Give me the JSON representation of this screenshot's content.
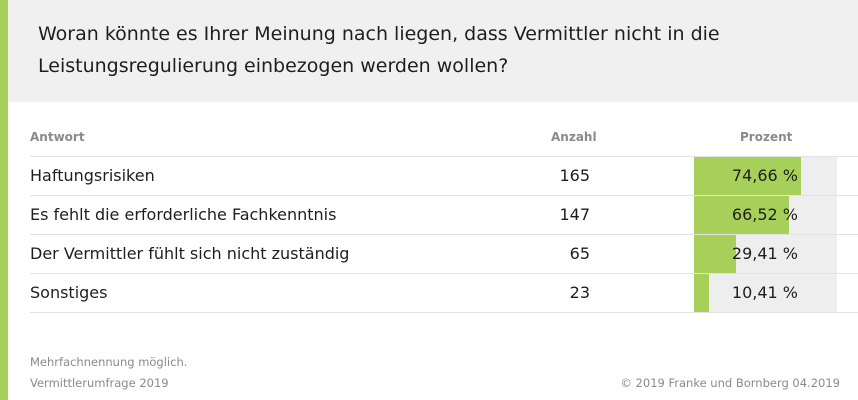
{
  "colors": {
    "accent": "#a7d05a",
    "bar": "#a7d05a",
    "track": "#eeeeee"
  },
  "title": "Woran könnte es Ihrer Meinung nach liegen, dass Vermittler nicht in die Leistungsregulierung einbezogen werden wollen?",
  "columns": {
    "answer": "Antwort",
    "count": "Anzahl",
    "percent": "Prozent"
  },
  "chart_data": {
    "type": "table",
    "title": "Woran könnte es Ihrer Meinung nach liegen, dass Vermittler nicht in die Leistungsregulierung einbezogen werden wollen?",
    "columns": [
      "Antwort",
      "Anzahl",
      "Prozent"
    ],
    "rows": [
      {
        "label": "Haftungsrisiken",
        "count": "165",
        "percent": 74.66,
        "percent_label": "74,66 %"
      },
      {
        "label": "Es fehlt die erforderliche Fachkenntnis",
        "count": "147",
        "percent": 66.52,
        "percent_label": "66,52 %"
      },
      {
        "label": "Der Vermittler fühlt sich nicht zuständig",
        "count": "65",
        "percent": 29.41,
        "percent_label": "29,41 %"
      },
      {
        "label": "Sonstiges",
        "count": "23",
        "percent": 10.41,
        "percent_label": "10,41 %"
      }
    ],
    "percent_max": 100
  },
  "footer": {
    "note": "Mehrfachnennung möglich.",
    "source": "Vermittlerumfrage 2019",
    "credit": "© 2019 Franke und Bornberg 04.2019"
  }
}
